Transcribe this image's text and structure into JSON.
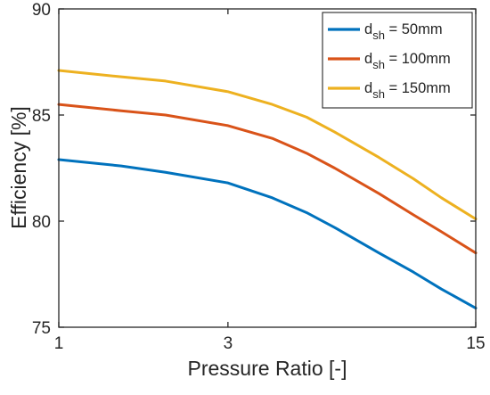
{
  "chart_data": {
    "type": "line",
    "title": "",
    "xlabel": "Pressure Ratio [-]",
    "ylabel": "Efficiency [%]",
    "x_scale": "log",
    "xlim": [
      1,
      15
    ],
    "ylim": [
      75,
      90
    ],
    "x_ticks": [
      1,
      3,
      15
    ],
    "x_tick_labels": [
      "1",
      "3",
      "15"
    ],
    "y_ticks": [
      75,
      80,
      85,
      90
    ],
    "y_tick_labels": [
      "75",
      "80",
      "85",
      "90"
    ],
    "grid": false,
    "legend_position": "top-right",
    "series": [
      {
        "name_main": "d",
        "name_sub": "sh",
        "name_rest": " = 50mm",
        "color": "#0072BD",
        "x": [
          1,
          1.5,
          2,
          3,
          4,
          5,
          6,
          8,
          10,
          12,
          15
        ],
        "y": [
          82.9,
          82.6,
          82.3,
          81.8,
          81.1,
          80.4,
          79.7,
          78.5,
          77.6,
          76.8,
          75.9
        ]
      },
      {
        "name_main": "d",
        "name_sub": "sh",
        "name_rest": " = 100mm",
        "color": "#D95319",
        "x": [
          1,
          1.5,
          2,
          3,
          4,
          5,
          6,
          8,
          10,
          12,
          15
        ],
        "y": [
          85.5,
          85.2,
          85.0,
          84.5,
          83.9,
          83.2,
          82.5,
          81.3,
          80.3,
          79.5,
          78.5
        ]
      },
      {
        "name_main": "d",
        "name_sub": "sh",
        "name_rest": " = 150mm",
        "color": "#EDB120",
        "x": [
          1,
          1.5,
          2,
          3,
          4,
          5,
          6,
          8,
          10,
          12,
          15
        ],
        "y": [
          87.1,
          86.8,
          86.6,
          86.1,
          85.5,
          84.9,
          84.2,
          83.0,
          82.0,
          81.1,
          80.1
        ]
      }
    ]
  }
}
